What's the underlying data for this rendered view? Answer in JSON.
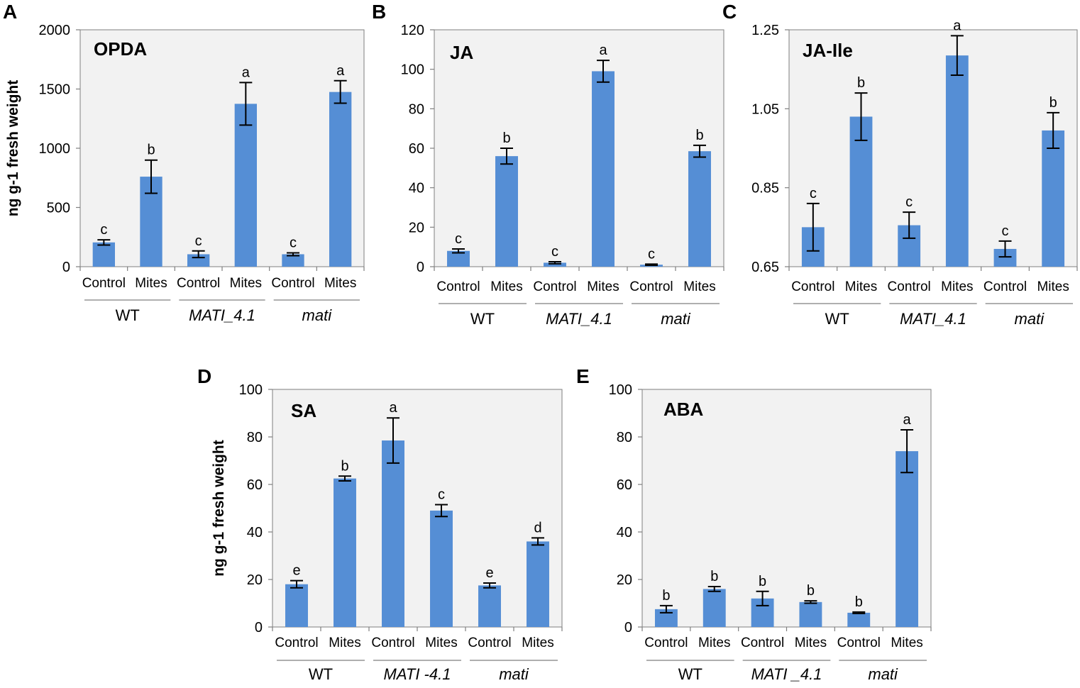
{
  "colors": {
    "bar": "#558ed5",
    "plot_bg": "#f2f2f2"
  },
  "ylabel": "ng g-1 fresh weight",
  "chart_data": [
    {
      "id": "A",
      "type": "bar",
      "title": "OPDA",
      "categories": [
        "Control",
        "Mites",
        "Control",
        "Mites",
        "Control",
        "Mites"
      ],
      "groups": [
        {
          "label": "WT",
          "italic": false
        },
        {
          "label": "MATI_4.1",
          "italic": true
        },
        {
          "label": "mati",
          "italic": true
        }
      ],
      "values": [
        205,
        760,
        105,
        1375,
        105,
        1475
      ],
      "errors": [
        22,
        140,
        28,
        180,
        12,
        95
      ],
      "significance": [
        "c",
        "b",
        "c",
        "a",
        "c",
        "a"
      ],
      "ylim": [
        0,
        2000
      ],
      "yticks": [
        "0",
        "500",
        "1000",
        "1500",
        "2000"
      ],
      "show_ylabel": true
    },
    {
      "id": "B",
      "type": "bar",
      "title": "JA",
      "categories": [
        "Control",
        "Mites",
        "Control",
        "Mites",
        "Control",
        "Mites"
      ],
      "groups": [
        {
          "label": "WT",
          "italic": false
        },
        {
          "label": "MATI_4.1",
          "italic": true
        },
        {
          "label": "mati",
          "italic": true
        }
      ],
      "values": [
        8,
        56,
        2,
        99,
        1,
        58.5
      ],
      "errors": [
        1,
        4,
        0.5,
        5.5,
        0.3,
        3
      ],
      "significance": [
        "c",
        "b",
        "c",
        "a",
        "c",
        "b"
      ],
      "ylim": [
        0,
        120
      ],
      "yticks": [
        "0",
        "20",
        "40",
        "60",
        "80",
        "100",
        "120"
      ],
      "show_ylabel": false
    },
    {
      "id": "C",
      "type": "bar",
      "title": "JA-Ile",
      "categories": [
        "Control",
        "Mites",
        "Control",
        "Mites",
        "Control",
        "Mites"
      ],
      "groups": [
        {
          "label": "WT",
          "italic": false
        },
        {
          "label": "MATI_4.1",
          "italic": true
        },
        {
          "label": "mati",
          "italic": true
        }
      ],
      "values": [
        0.75,
        1.03,
        0.755,
        1.185,
        0.695,
        0.995
      ],
      "errors": [
        0.06,
        0.06,
        0.033,
        0.05,
        0.02,
        0.045
      ],
      "significance": [
        "c",
        "b",
        "c",
        "a",
        "c",
        "b"
      ],
      "ylim": [
        0.65,
        1.25
      ],
      "yticks": [
        "0.65",
        "0.85",
        "1.05",
        "1.25"
      ],
      "show_ylabel": false
    },
    {
      "id": "D",
      "type": "bar",
      "title": "SA",
      "categories": [
        "Control",
        "Mites",
        "Control",
        "Mites",
        "Control",
        "Mites"
      ],
      "groups": [
        {
          "label": "WT",
          "italic": false
        },
        {
          "label": "MATI -4.1",
          "italic": true
        },
        {
          "label": "mati",
          "italic": true
        }
      ],
      "values": [
        18,
        62.5,
        78.5,
        49,
        17.5,
        36
      ],
      "errors": [
        1.5,
        1,
        9.5,
        2.5,
        1,
        1.5
      ],
      "significance": [
        "e",
        "b",
        "a",
        "c",
        "e",
        "d"
      ],
      "ylim": [
        0,
        100
      ],
      "yticks": [
        "0",
        "20",
        "40",
        "60",
        "80",
        "100"
      ],
      "show_ylabel": true
    },
    {
      "id": "E",
      "type": "bar",
      "title": "ABA",
      "categories": [
        "Control",
        "Mites",
        "Control",
        "Mites",
        "Control",
        "Mites"
      ],
      "groups": [
        {
          "label": "WT",
          "italic": false
        },
        {
          "label": "MATI _4.1",
          "italic": true
        },
        {
          "label": "mati",
          "italic": true
        }
      ],
      "values": [
        7.5,
        16,
        12,
        10.5,
        6,
        74
      ],
      "errors": [
        1.5,
        1,
        3,
        0.5,
        0.3,
        9
      ],
      "significance": [
        "b",
        "b",
        "b",
        "b",
        "b",
        "a"
      ],
      "ylim": [
        0,
        100
      ],
      "yticks": [
        "0",
        "20",
        "40",
        "60",
        "80",
        "100"
      ],
      "show_ylabel": false
    }
  ]
}
